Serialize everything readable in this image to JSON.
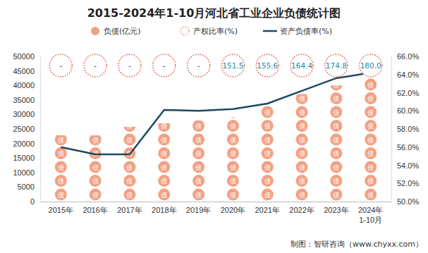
{
  "chart_data": {
    "type": "bar",
    "title": "2015-2024年1-10月河北省工业企业负债统计图",
    "categories": [
      "2015年",
      "2016年",
      "2017年",
      "2018年",
      "2019年",
      "2020年",
      "2021年",
      "2022年",
      "2023年",
      "2024年\n1-10月"
    ],
    "series": [
      {
        "name": "负债(亿元)",
        "type": "bar",
        "color": "#f2a184",
        "marker": "债",
        "values": [
          22800,
          22800,
          25700,
          27000,
          28000,
          29000,
          34000,
          37000,
          40000,
          43000
        ]
      },
      {
        "name": "产权比率(%)",
        "type": "label",
        "color": "#e8392c",
        "marker": "circle",
        "line_style": "dotted",
        "data_labels": true,
        "values": [
          null,
          null,
          null,
          null,
          null,
          151.5,
          155.6,
          164.4,
          174.8,
          180
        ],
        "value_labels": [
          "-",
          "-",
          "-",
          "-",
          "-",
          "151.5",
          "155.6",
          "164.4",
          "174.8",
          "180.0"
        ]
      },
      {
        "name": "资产负债率(%)",
        "type": "line",
        "axis": "y2",
        "color": "#1d4a5c",
        "values": [
          56.0,
          55.2,
          55.2,
          60.1,
          60.0,
          60.2,
          60.8,
          62.2,
          63.6,
          64.2
        ]
      }
    ],
    "ylim": [
      0,
      50000
    ],
    "yticks": [
      0,
      5000,
      10000,
      15000,
      20000,
      25000,
      30000,
      35000,
      40000,
      45000,
      50000
    ],
    "y2lim": [
      50,
      66
    ],
    "y2ticks": [
      {
        "value": 50,
        "label": "50.0%"
      },
      {
        "value": 52,
        "label": "52.0%"
      },
      {
        "value": 54,
        "label": "54.0%"
      },
      {
        "value": 56,
        "label": "56.0%"
      },
      {
        "value": 58,
        "label": "58.0%"
      },
      {
        "value": 60,
        "label": "60.0%"
      },
      {
        "value": 62,
        "label": "62.0%"
      },
      {
        "value": 64,
        "label": "64.0%"
      },
      {
        "value": 66,
        "label": "66.0%"
      }
    ],
    "grid": false,
    "legend": "top",
    "source": "制图：智研咨询（www.chyxx.com）"
  }
}
